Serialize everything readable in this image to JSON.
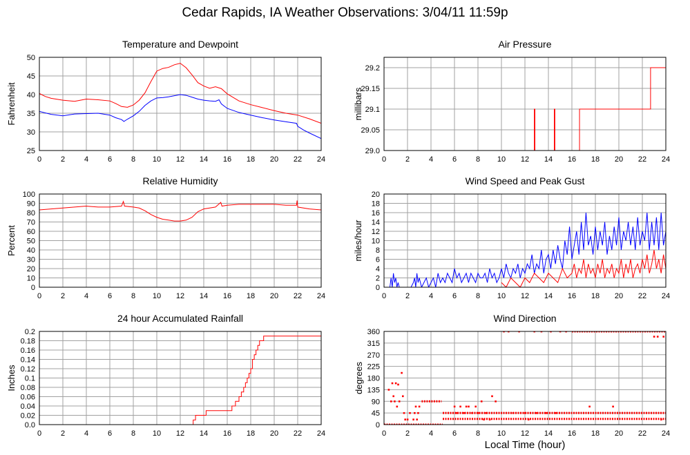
{
  "title": "Cedar Rapids, IA Weather Observations: 3/04/11 11:59p",
  "colors": {
    "red": "#ff0000",
    "blue": "#0000ff",
    "grid": "#a0a0a0",
    "frame": "#000000"
  },
  "chart_data": [
    {
      "id": "temp",
      "type": "line",
      "title": "Temperature and Dewpoint",
      "xlabel": "",
      "ylabel": "Fahrenheit",
      "xlim": [
        0,
        24
      ],
      "ylim": [
        25,
        50
      ],
      "xticks": [
        0,
        2,
        4,
        6,
        8,
        10,
        12,
        14,
        16,
        18,
        20,
        22,
        24
      ],
      "yticks": [
        25,
        30,
        35,
        40,
        45,
        50
      ],
      "grid": true,
      "series": [
        {
          "color": "#ff0000",
          "x": [
            0,
            0.5,
            1,
            2,
            3,
            4,
            5,
            6,
            6.5,
            7,
            7.5,
            8,
            8.5,
            9,
            9.5,
            10,
            10.5,
            11,
            11.5,
            12,
            12.5,
            13,
            13.5,
            14,
            14.5,
            15,
            15.5,
            16,
            17,
            18,
            19,
            20,
            21,
            22,
            23,
            24
          ],
          "y": [
            40.3,
            39.5,
            39,
            38.5,
            38.2,
            38.8,
            38.6,
            38.3,
            37.6,
            36.8,
            36.6,
            37.2,
            38.5,
            40.5,
            43.5,
            46.3,
            47,
            47.3,
            48,
            48.4,
            47.2,
            45.3,
            43.2,
            42.3,
            41.7,
            42.1,
            41.6,
            40.2,
            38.3,
            37.3,
            36.5,
            35.7,
            35,
            34.5,
            33.5,
            32.3
          ]
        },
        {
          "color": "#0000ff",
          "x": [
            0,
            0.5,
            1,
            2,
            3,
            4,
            5,
            6,
            6.5,
            7,
            7.2,
            7.5,
            8,
            8.5,
            9,
            9.5,
            10,
            10.5,
            11,
            11.5,
            12,
            12.5,
            13,
            13.5,
            14,
            14.5,
            15,
            15.3,
            15.5,
            16,
            17,
            18,
            19,
            20,
            21,
            21.9,
            22,
            22.5,
            23,
            24
          ],
          "y": [
            35.5,
            35.1,
            34.7,
            34.3,
            34.8,
            34.9,
            35,
            34.5,
            33.8,
            33.3,
            32.8,
            33.4,
            34.3,
            35.5,
            37.1,
            38.3,
            39.1,
            39.2,
            39.4,
            39.7,
            40,
            39.8,
            39.3,
            38.8,
            38.5,
            38.3,
            38.2,
            38.6,
            37.5,
            36.3,
            35.2,
            34.5,
            33.8,
            33.2,
            32.7,
            32.3,
            31.5,
            30.5,
            29.7,
            28.2
          ]
        }
      ]
    },
    {
      "id": "press",
      "type": "line",
      "title": "Air Pressure",
      "xlabel": "",
      "ylabel": "millibars",
      "xlim": [
        0,
        24
      ],
      "ylim": [
        29.0,
        29.225
      ],
      "xticks": [
        0,
        2,
        4,
        6,
        8,
        10,
        12,
        14,
        16,
        18,
        20,
        22,
        24
      ],
      "yticks": [
        "29.0",
        "29.05",
        "29.1",
        "29.15",
        "29.2"
      ],
      "grid": true,
      "series": [
        {
          "color": "#ff0000",
          "x": [
            0,
            12.8,
            12.8,
            12.85,
            12.85,
            14.5,
            14.5,
            14.55,
            14.55,
            16.65,
            16.65,
            22.7,
            22.7,
            24
          ],
          "y": [
            29.0,
            29.0,
            29.1,
            29.1,
            29.0,
            29.0,
            29.1,
            29.1,
            29.0,
            29.0,
            29.1,
            29.1,
            29.2,
            29.2
          ]
        }
      ]
    },
    {
      "id": "rh",
      "type": "line",
      "title": "Relative Humidity",
      "xlabel": "",
      "ylabel": "Percent",
      "xlim": [
        0,
        24
      ],
      "ylim": [
        0,
        100
      ],
      "xticks": [
        0,
        2,
        4,
        6,
        8,
        10,
        12,
        14,
        16,
        18,
        20,
        22,
        24
      ],
      "yticks": [
        0,
        10,
        20,
        30,
        40,
        50,
        60,
        70,
        80,
        90,
        100
      ],
      "grid": true,
      "series": [
        {
          "color": "#ff0000",
          "x": [
            0,
            1,
            2,
            3,
            4,
            5,
            6,
            7,
            7.15,
            7.2,
            7.25,
            8,
            8.5,
            9,
            9.5,
            10,
            10.5,
            11,
            11.5,
            12,
            12.5,
            13,
            13.5,
            14,
            15,
            15.45,
            15.5,
            15.55,
            16,
            17,
            18,
            19,
            20,
            21,
            21.9,
            21.95,
            22,
            23,
            24
          ],
          "y": [
            83,
            84,
            85,
            86,
            87,
            86,
            86,
            87,
            92,
            90,
            87,
            86,
            85,
            82,
            78,
            75,
            73,
            72,
            71,
            71,
            72,
            75,
            81,
            84,
            86,
            91,
            89,
            87,
            88,
            89,
            89,
            89,
            89,
            88,
            88,
            93,
            86,
            84,
            83
          ]
        }
      ]
    },
    {
      "id": "wind",
      "type": "line",
      "title": "Wind Speed and Peak Gust",
      "xlabel": "",
      "ylabel": "miles/hour",
      "xlim": [
        0,
        24
      ],
      "ylim": [
        0,
        20
      ],
      "xticks": [
        0,
        2,
        4,
        6,
        8,
        10,
        12,
        14,
        16,
        18,
        20,
        22,
        24
      ],
      "yticks": [
        0,
        2,
        4,
        6,
        8,
        10,
        12,
        14,
        16,
        18,
        20
      ],
      "grid": true,
      "series": [
        {
          "color": "#0000ff",
          "x": [
            0,
            0.5,
            0.6,
            0.7,
            0.8,
            0.9,
            1.0,
            1.1,
            1.2,
            1.3,
            1.5,
            1.8,
            2.0,
            2.3,
            2.5,
            2.6,
            2.7,
            2.8,
            2.9,
            3.0,
            3.2,
            3.4,
            3.6,
            3.8,
            4.0,
            4.2,
            4.4,
            4.6,
            4.8,
            5.0,
            5.2,
            5.4,
            5.6,
            5.8,
            6.0,
            6.2,
            6.4,
            6.6,
            6.8,
            7.0,
            7.2,
            7.4,
            7.6,
            7.8,
            8.0,
            8.2,
            8.4,
            8.6,
            8.8,
            9.0,
            9.2,
            9.4,
            9.6,
            9.8,
            10.0,
            10.2,
            10.4,
            10.6,
            10.8,
            11.0,
            11.2,
            11.4,
            11.6,
            11.8,
            12.0,
            12.2,
            12.4,
            12.6,
            12.8,
            13.0,
            13.2,
            13.4,
            13.6,
            13.8,
            14.0,
            14.2,
            14.4,
            14.6,
            14.8,
            15.0,
            15.2,
            15.4,
            15.6,
            15.8,
            16.0,
            16.2,
            16.4,
            16.6,
            16.8,
            17.0,
            17.2,
            17.4,
            17.6,
            17.8,
            18.0,
            18.2,
            18.4,
            18.6,
            18.8,
            19.0,
            19.2,
            19.4,
            19.6,
            19.8,
            20.0,
            20.2,
            20.4,
            20.6,
            20.8,
            21.0,
            21.2,
            21.4,
            21.6,
            21.8,
            22.0,
            22.2,
            22.4,
            22.6,
            22.8,
            23.0,
            23.2,
            23.4,
            23.6,
            23.8,
            24.0
          ],
          "y": [
            0,
            0,
            2,
            0,
            3,
            1,
            2,
            0,
            1,
            0,
            0,
            0,
            0,
            0,
            1,
            2,
            0,
            3,
            1,
            2,
            0,
            1,
            2,
            0,
            1,
            2,
            0,
            3,
            1,
            2,
            1,
            3,
            2,
            1,
            4,
            2,
            3,
            1,
            2,
            3,
            1,
            3,
            2,
            1,
            3,
            2,
            2,
            3,
            1,
            4,
            2,
            3,
            1,
            2,
            4,
            2,
            5,
            3,
            2,
            4,
            3,
            5,
            2,
            4,
            3,
            5,
            4,
            7,
            3,
            5,
            4,
            8,
            3,
            6,
            7,
            4,
            8,
            5,
            9,
            6,
            4,
            10,
            7,
            13,
            6,
            9,
            12,
            7,
            14,
            8,
            16,
            9,
            11,
            7,
            13,
            8,
            12,
            9,
            14,
            7,
            11,
            8,
            13,
            9,
            15,
            8,
            12,
            10,
            14,
            9,
            13,
            8,
            15,
            9,
            12,
            10,
            16,
            8,
            14,
            9,
            15,
            8,
            16,
            9,
            12
          ]
        },
        {
          "color": "#ff0000",
          "x": [
            10.0,
            10.4,
            10.8,
            11.2,
            11.6,
            12.0,
            12.4,
            12.8,
            13.2,
            13.6,
            14.0,
            14.4,
            14.8,
            15.2,
            15.6,
            16.0,
            16.2,
            16.4,
            16.6,
            16.8,
            17.0,
            17.2,
            17.4,
            17.6,
            17.8,
            18.0,
            18.2,
            18.4,
            18.6,
            18.8,
            19.0,
            19.2,
            19.4,
            19.6,
            19.8,
            20.0,
            20.2,
            20.4,
            20.6,
            20.8,
            21.0,
            21.2,
            21.4,
            21.6,
            21.8,
            22.0,
            22.2,
            22.4,
            22.6,
            22.8,
            23.0,
            23.2,
            23.4,
            23.6,
            23.8,
            24.0
          ],
          "y": [
            1,
            0,
            2,
            1,
            0,
            2,
            1,
            3,
            2,
            1,
            3,
            2,
            1,
            4,
            2,
            3,
            5,
            2,
            4,
            3,
            6,
            2,
            5,
            3,
            4,
            2,
            5,
            3,
            6,
            2,
            4,
            3,
            5,
            2,
            4,
            3,
            6,
            2,
            5,
            3,
            6,
            2,
            4,
            5,
            3,
            6,
            4,
            7,
            3,
            5,
            8,
            4,
            6,
            3,
            7,
            4
          ]
        }
      ]
    },
    {
      "id": "rain",
      "type": "line",
      "title": "24 hour Accumulated Rainfall",
      "xlabel": "",
      "ylabel": "Inches",
      "xlim": [
        0,
        24
      ],
      "ylim": [
        0,
        0.2
      ],
      "xticks": [
        0,
        2,
        4,
        6,
        8,
        10,
        12,
        14,
        16,
        18,
        20,
        22,
        24
      ],
      "yticks": [
        "0.0",
        "0.02",
        "0.04",
        "0.06",
        "0.08",
        "0.1",
        "0.12",
        "0.14",
        "0.16",
        "0.18",
        "0.2"
      ],
      "grid": true,
      "series": [
        {
          "color": "#ff0000",
          "step": true,
          "x": [
            0,
            13.1,
            13.3,
            13.5,
            14.2,
            16.4,
            16.7,
            17.0,
            17.2,
            17.4,
            17.55,
            17.7,
            17.85,
            18.0,
            18.15,
            18.3,
            18.45,
            18.6,
            18.75,
            18.9,
            19.1,
            24
          ],
          "y": [
            0,
            0.01,
            0.02,
            0.02,
            0.03,
            0.04,
            0.05,
            0.06,
            0.07,
            0.08,
            0.09,
            0.1,
            0.11,
            0.12,
            0.14,
            0.15,
            0.16,
            0.17,
            0.18,
            0.18,
            0.19,
            0.19
          ]
        }
      ]
    },
    {
      "id": "wdir",
      "type": "scatter",
      "title": "Wind Direction",
      "xlabel": "Local Time (hour)",
      "ylabel": "degrees",
      "xlim": [
        0,
        24
      ],
      "ylim": [
        0,
        360
      ],
      "xticks": [
        0,
        2,
        4,
        6,
        8,
        10,
        12,
        14,
        16,
        18,
        20,
        22,
        24
      ],
      "yticks": [
        0,
        45,
        90,
        135,
        180,
        225,
        270,
        315,
        360
      ],
      "grid": true,
      "series": [
        {
          "color": "#ff0000",
          "segments": [
            {
              "x0": 0,
              "x1": 5.0,
              "y": 0
            },
            {
              "x0": 5.0,
              "x1": 24,
              "y": 45
            },
            {
              "x0": 5.0,
              "x1": 24,
              "y": 22
            },
            {
              "x0": 3.2,
              "x1": 4.9,
              "y": 90
            },
            {
              "x0": 16.0,
              "x1": 24,
              "y": 360
            }
          ],
          "x": [
            0.4,
            0.6,
            0.7,
            0.8,
            0.9,
            1.0,
            1.1,
            1.2,
            1.3,
            1.5,
            1.6,
            1.7,
            1.8,
            2.0,
            2.2,
            2.5,
            2.6,
            2.7,
            2.8,
            2.9,
            3.0,
            6.0,
            6.2,
            6.5,
            6.8,
            7.0,
            7.2,
            7.5,
            7.8,
            8.0,
            8.3,
            8.5,
            8.7,
            9.0,
            9.2,
            9.5,
            10.2,
            10.6,
            11.0,
            11.5,
            12.0,
            12.3,
            12.8,
            13.0,
            13.4,
            13.8,
            14.2,
            14.6,
            15.0,
            15.5,
            17.5,
            19.5,
            23.0,
            23.3,
            23.6,
            23.8
          ],
          "y": [
            135,
            90,
            160,
            110,
            90,
            160,
            70,
            155,
            90,
            200,
            110,
            45,
            20,
            20,
            45,
            20,
            45,
            70,
            20,
            45,
            70,
            70,
            45,
            70,
            45,
            70,
            70,
            45,
            70,
            45,
            90,
            20,
            45,
            20,
            110,
            90,
            360,
            360,
            45,
            360,
            45,
            20,
            360,
            45,
            360,
            45,
            360,
            45,
            360,
            360,
            70,
            70,
            340,
            340,
            20,
            340
          ]
        }
      ]
    }
  ]
}
